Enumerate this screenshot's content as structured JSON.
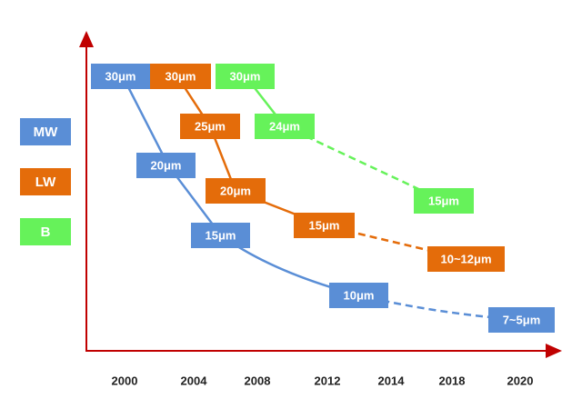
{
  "legend": [
    {
      "label": "MW"
    },
    {
      "label": "LW"
    },
    {
      "label": "B"
    }
  ],
  "x_axis_labels": [
    "2000",
    "2004",
    "2008",
    "2012",
    "2014",
    "2018",
    "2020"
  ],
  "series": [
    {
      "name": "MW",
      "color": "#5a8ed6",
      "boxes": [
        "30μm",
        "20μm",
        "15μm",
        "10μm",
        "7~5μm"
      ]
    },
    {
      "name": "LW",
      "color": "#e46c0a",
      "boxes": [
        "30μm",
        "25μm",
        "20μm",
        "15μm",
        "10~12μm"
      ]
    },
    {
      "name": "B",
      "color": "#66f25a",
      "boxes": [
        "30μm",
        "24μm",
        "15μm"
      ]
    }
  ]
}
